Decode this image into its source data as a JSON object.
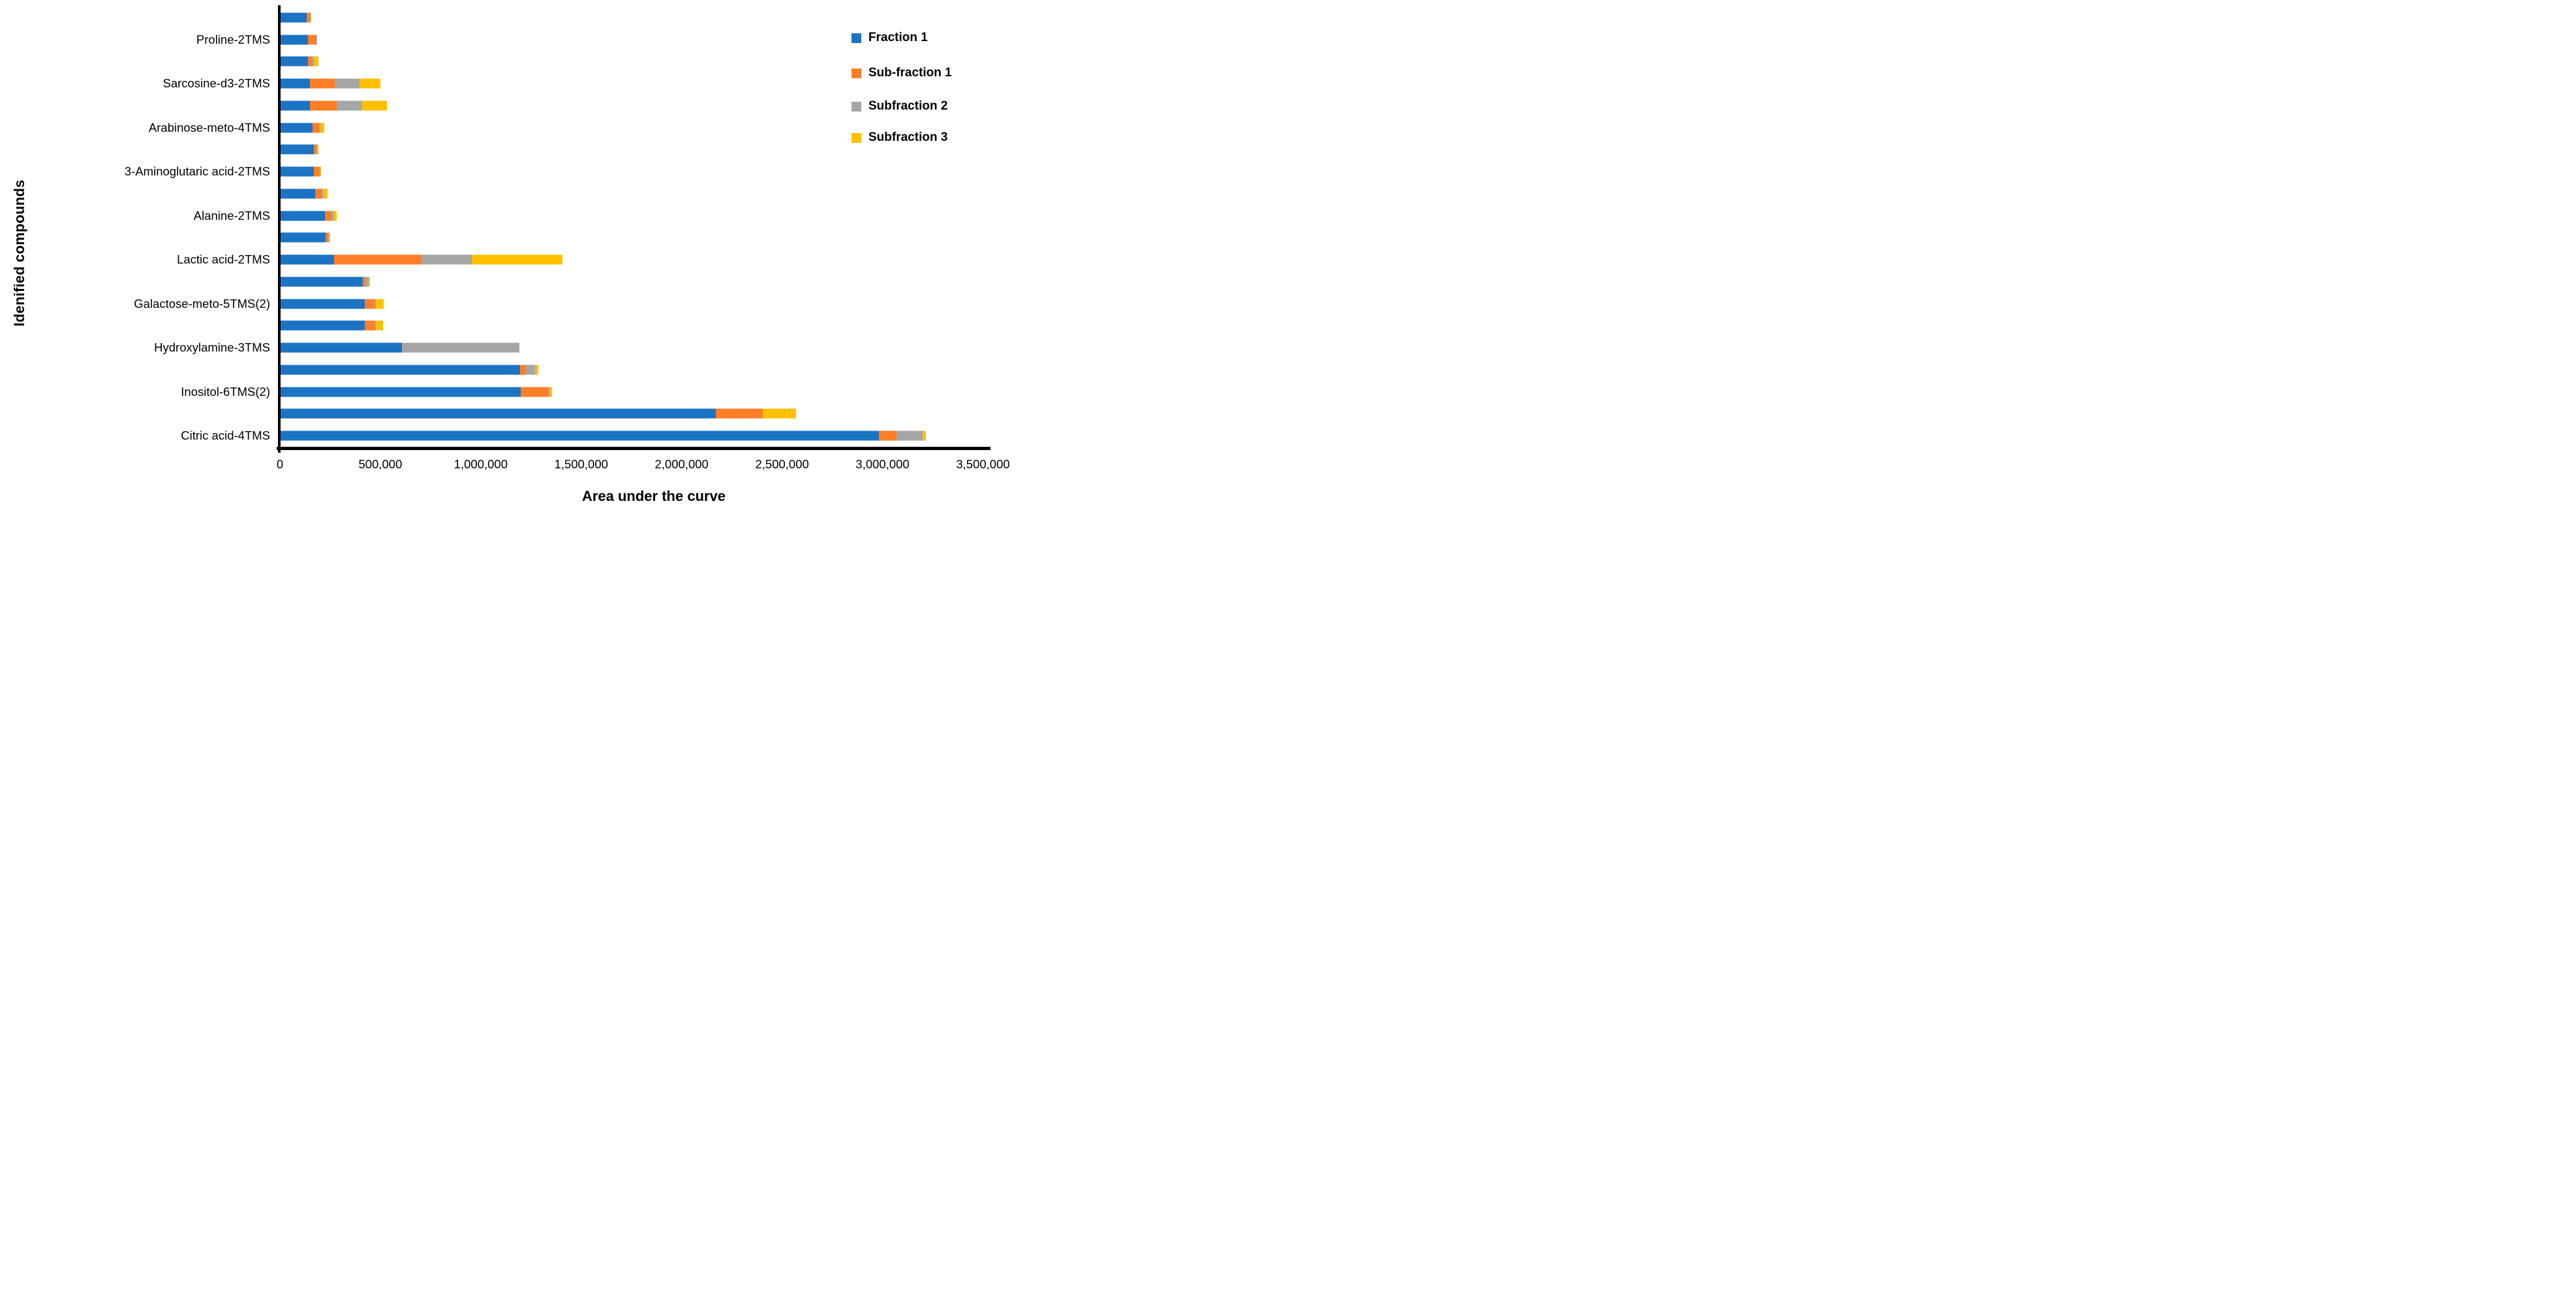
{
  "chart_data": {
    "type": "bar",
    "orientation": "horizontal",
    "stacked": true,
    "title": "",
    "xlabel": "Area under the curve",
    "ylabel": "Idenified compounds",
    "xlim": [
      0,
      3500000
    ],
    "x_tick_interval": 500000,
    "x_ticks": [
      "0",
      "500,000",
      "1,000,000",
      "1,500,000",
      "2,000,000",
      "2,500,000",
      "3,000,000",
      "3,500,000"
    ],
    "grid": false,
    "legend_position": "top-right",
    "axis_color": "#000000",
    "background_color": "#FFFFFF",
    "series": [
      {
        "name": "Fraction 1",
        "color": "#1B73C4"
      },
      {
        "name": "Sub-fraction 1",
        "color": "#FD7E27"
      },
      {
        "name": "Subfraction 2",
        "color": "#A6A6A6"
      },
      {
        "name": "Subfraction 3",
        "color": "#FFC000"
      }
    ],
    "rows": [
      {
        "label": "",
        "values": [
          134000,
          15000,
          4000,
          3000
        ]
      },
      {
        "label": "Proline-2TMS",
        "values": [
          141000,
          39000,
          5000,
          0
        ]
      },
      {
        "label": "",
        "values": [
          141000,
          19000,
          8000,
          23000
        ]
      },
      {
        "label": "Sarcosine-d3-2TMS",
        "values": [
          149000,
          124000,
          124000,
          102000
        ]
      },
      {
        "label": "",
        "values": [
          151000,
          132000,
          127000,
          124000
        ]
      },
      {
        "label": "Arabinose-meto-4TMS",
        "values": [
          163000,
          31000,
          6000,
          21000
        ]
      },
      {
        "label": "",
        "values": [
          168000,
          15000,
          1000,
          9000
        ]
      },
      {
        "label": "3-Aminoglutaric acid-2TMS",
        "values": [
          169000,
          26000,
          5000,
          3000
        ]
      },
      {
        "label": "",
        "values": [
          176000,
          32000,
          5000,
          25000
        ]
      },
      {
        "label": "Alanine-2TMS",
        "values": [
          225000,
          33000,
          9000,
          15000
        ]
      },
      {
        "label": "",
        "values": [
          228000,
          13000,
          2000,
          7000
        ]
      },
      {
        "label": "Lactic acid-2TMS",
        "values": [
          268000,
          436000,
          252000,
          449000
        ]
      },
      {
        "label": "",
        "values": [
          411000,
          14000,
          16000,
          6000
        ]
      },
      {
        "label": "Galactose-meto-5TMS(2)",
        "values": [
          422000,
          50000,
          6000,
          38000
        ]
      },
      {
        "label": "",
        "values": [
          421000,
          51000,
          6000,
          35000
        ]
      },
      {
        "label": "Hydroxylamine-3TMS",
        "values": [
          609000,
          0,
          583000,
          0
        ]
      },
      {
        "label": "",
        "values": [
          1194000,
          32000,
          45000,
          15000
        ]
      },
      {
        "label": "Inositol-6TMS(2)",
        "values": [
          1197000,
          141000,
          3000,
          15000
        ]
      },
      {
        "label": "",
        "values": [
          2170000,
          233000,
          0,
          168000
        ]
      },
      {
        "label": "Citric acid-4TMS",
        "values": [
          2982000,
          87000,
          130000,
          17000
        ]
      }
    ]
  }
}
